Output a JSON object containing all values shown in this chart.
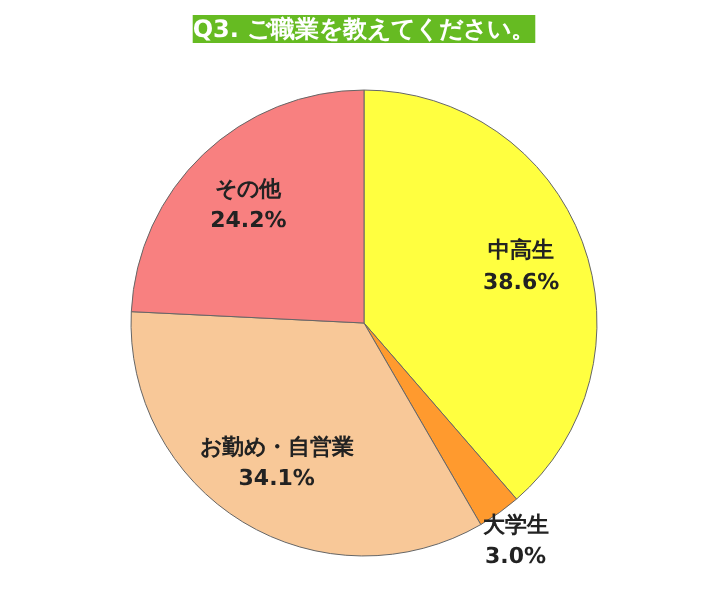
{
  "chart_data": {
    "type": "pie",
    "title": "Q3. ご職業を教えてください。",
    "categories": [
      "中高生",
      "大学生",
      "お勤め・自営業",
      "その他"
    ],
    "values": [
      38.6,
      3.0,
      34.1,
      24.2
    ],
    "colors": [
      "#ffff40",
      "#ff9a2e",
      "#f8c898",
      "#f88080"
    ],
    "value_labels": [
      "38.6%",
      "3.0%",
      "34.1%",
      "24.2%"
    ]
  }
}
